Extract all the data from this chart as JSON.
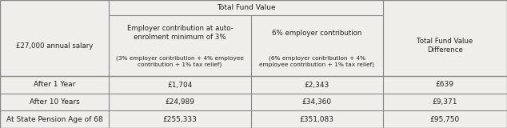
{
  "c0": 0.0,
  "c1": 0.215,
  "c2": 0.495,
  "c3": 0.755,
  "c4": 1.0,
  "r_top": 1.0,
  "r_h1": 0.88,
  "r_h2": 0.405,
  "r_d1": 0.27,
  "r_d2": 0.135,
  "r_bot": 0.0,
  "bg_color": "#f0eeea",
  "line_color": "#888888",
  "text_color": "#222222",
  "fontsize": 6.5,
  "col0_header": "£27,000 annual salary",
  "col1_header_line1": "Employer contribution at auto-\nenrolment minimum of 3%",
  "col1_header_line2": "(3% employer contribution + 4% employee\ncontribution + 1% tax relief)",
  "col2_header_line1": "6% employer contribution",
  "col2_header_line2": "(6% employer contribution + 4%\nemployee contribution + 1% tax relief)",
  "col3_header": "Total Fund Value\nDifference",
  "span_header": "Total Fund Value",
  "data_rows": [
    {
      "col0": "After 1 Year",
      "col1": "£1,704",
      "col2": "£2,343",
      "col3": "£639",
      "bold": false
    },
    {
      "col0": "After 10 Years",
      "col1": "£24,989",
      "col2": "£34,360",
      "col3": "£9,371",
      "bold": false
    },
    {
      "col0": "At State Pension Age of 68",
      "col1": "£255,333",
      "col2": "£351,083",
      "col3": "£95,750",
      "bold": false
    }
  ]
}
